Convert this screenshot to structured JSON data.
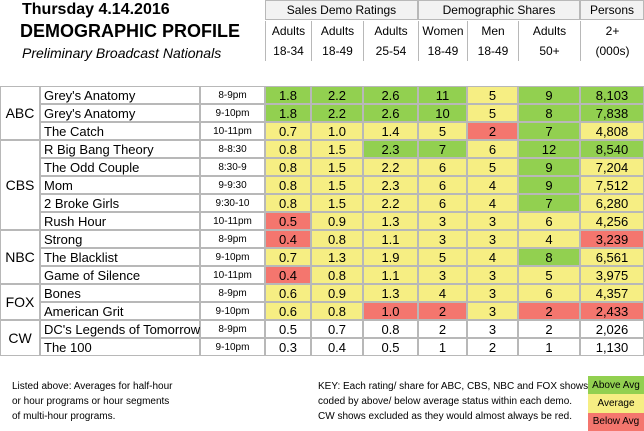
{
  "header": {
    "title": "Thursday 4.14.2016",
    "subtitle": "DEMOGRAPHIC PROFILE",
    "note": "Preliminary Broadcast Nationals"
  },
  "column_groups": [
    {
      "label": "Sales Demo Ratings",
      "columns": [
        {
          "lines": [
            "Adults",
            "18-34"
          ]
        },
        {
          "lines": [
            "Adults",
            "18-49"
          ]
        },
        {
          "lines": [
            "Adults",
            "25-54"
          ]
        }
      ]
    },
    {
      "label": "Demographic Shares",
      "columns": [
        {
          "lines": [
            "Women",
            "18-49"
          ]
        },
        {
          "lines": [
            "Men",
            "18-49"
          ]
        },
        {
          "lines": [
            "Adults",
            "50+"
          ]
        }
      ]
    },
    {
      "label": "Persons",
      "columns": [
        {
          "lines": [
            "2+",
            "(000s)"
          ]
        }
      ]
    }
  ],
  "networks": [
    {
      "name": "ABC",
      "rows": [
        {
          "show": "Grey's Anatomy",
          "time": "8-9pm",
          "values": [
            "1.8",
            "2.2",
            "2.6",
            "11",
            "5",
            "9",
            "8,103"
          ],
          "colors": [
            "#92d050",
            "#92d050",
            "#92d050",
            "#92d050",
            "#f6ee83",
            "#92d050",
            "#92d050"
          ]
        },
        {
          "show": "Grey's Anatomy",
          "time": "9-10pm",
          "values": [
            "1.8",
            "2.2",
            "2.6",
            "10",
            "5",
            "8",
            "7,838"
          ],
          "colors": [
            "#92d050",
            "#92d050",
            "#92d050",
            "#92d050",
            "#f6ee83",
            "#92d050",
            "#92d050"
          ]
        },
        {
          "show": "The Catch",
          "time": "10-11pm",
          "values": [
            "0.7",
            "1.0",
            "1.4",
            "5",
            "2",
            "7",
            "4,808"
          ],
          "colors": [
            "#f6ee83",
            "#f6ee83",
            "#f6ee83",
            "#f6ee83",
            "#f4766e",
            "#92d050",
            "#f6ee83"
          ]
        }
      ]
    },
    {
      "name": "CBS",
      "rows": [
        {
          "show": "R Big Bang Theory",
          "time": "8-8:30",
          "values": [
            "0.8",
            "1.5",
            "2.3",
            "7",
            "6",
            "12",
            "8,540"
          ],
          "colors": [
            "#f6ee83",
            "#f6ee83",
            "#92d050",
            "#92d050",
            "#f6ee83",
            "#92d050",
            "#92d050"
          ]
        },
        {
          "show": "The Odd Couple",
          "time": "8:30-9",
          "values": [
            "0.8",
            "1.5",
            "2.2",
            "6",
            "5",
            "9",
            "7,204"
          ],
          "colors": [
            "#f6ee83",
            "#f6ee83",
            "#f6ee83",
            "#f6ee83",
            "#f6ee83",
            "#92d050",
            "#f6ee83"
          ]
        },
        {
          "show": "Mom",
          "time": "9-9:30",
          "values": [
            "0.8",
            "1.5",
            "2.3",
            "6",
            "4",
            "9",
            "7,512"
          ],
          "colors": [
            "#f6ee83",
            "#f6ee83",
            "#f6ee83",
            "#f6ee83",
            "#f6ee83",
            "#92d050",
            "#f6ee83"
          ]
        },
        {
          "show": "2 Broke Girls",
          "time": "9:30-10",
          "values": [
            "0.8",
            "1.5",
            "2.2",
            "6",
            "4",
            "7",
            "6,280"
          ],
          "colors": [
            "#f6ee83",
            "#f6ee83",
            "#f6ee83",
            "#f6ee83",
            "#f6ee83",
            "#92d050",
            "#f6ee83"
          ]
        },
        {
          "show": "Rush Hour",
          "time": "10-11pm",
          "values": [
            "0.5",
            "0.9",
            "1.3",
            "3",
            "3",
            "6",
            "4,256"
          ],
          "colors": [
            "#f4766e",
            "#f6ee83",
            "#f6ee83",
            "#f6ee83",
            "#f6ee83",
            "#f6ee83",
            "#f6ee83"
          ]
        }
      ]
    },
    {
      "name": "NBC",
      "rows": [
        {
          "show": "Strong",
          "time": "8-9pm",
          "values": [
            "0.4",
            "0.8",
            "1.1",
            "3",
            "3",
            "4",
            "3,239"
          ],
          "colors": [
            "#f4766e",
            "#f6ee83",
            "#f6ee83",
            "#f6ee83",
            "#f6ee83",
            "#f6ee83",
            "#f4766e"
          ]
        },
        {
          "show": "The Blacklist",
          "time": "9-10pm",
          "values": [
            "0.7",
            "1.3",
            "1.9",
            "5",
            "4",
            "8",
            "6,561"
          ],
          "colors": [
            "#f6ee83",
            "#f6ee83",
            "#f6ee83",
            "#f6ee83",
            "#f6ee83",
            "#92d050",
            "#f6ee83"
          ]
        },
        {
          "show": "Game of Silence",
          "time": "10-11pm",
          "values": [
            "0.4",
            "0.8",
            "1.1",
            "3",
            "3",
            "5",
            "3,975"
          ],
          "colors": [
            "#f4766e",
            "#f6ee83",
            "#f6ee83",
            "#f6ee83",
            "#f6ee83",
            "#f6ee83",
            "#f6ee83"
          ]
        }
      ]
    },
    {
      "name": "FOX",
      "rows": [
        {
          "show": "Bones",
          "time": "8-9pm",
          "values": [
            "0.6",
            "0.9",
            "1.3",
            "4",
            "3",
            "6",
            "4,357"
          ],
          "colors": [
            "#f6ee83",
            "#f6ee83",
            "#f6ee83",
            "#f6ee83",
            "#f6ee83",
            "#f6ee83",
            "#f6ee83"
          ]
        },
        {
          "show": "American Grit",
          "time": "9-10pm",
          "values": [
            "0.6",
            "0.8",
            "1.0",
            "2",
            "3",
            "2",
            "2,433"
          ],
          "colors": [
            "#f6ee83",
            "#f6ee83",
            "#f4766e",
            "#f4766e",
            "#f6ee83",
            "#f4766e",
            "#f4766e"
          ]
        }
      ]
    },
    {
      "name": "CW",
      "rows": [
        {
          "show": "DC's Legends of Tomorrow",
          "time": "8-9pm",
          "values": [
            "0.5",
            "0.7",
            "0.8",
            "2",
            "3",
            "2",
            "2,026"
          ]
        },
        {
          "show": "The 100",
          "time": "9-10pm",
          "values": [
            "0.3",
            "0.4",
            "0.5",
            "1",
            "2",
            "1",
            "1,130"
          ]
        }
      ]
    }
  ],
  "footer": {
    "note": [
      "Listed above: Averages for half-hour",
      "or hour programs or hour segments",
      "of multi-hour programs."
    ],
    "key": [
      "KEY: Each rating/ share for ABC, CBS, NBC and FOX shows are color-",
      "coded by above/ below average status within each demo.",
      "CW shows excluded as they would almost always be red."
    ],
    "legend": [
      {
        "label": "Above Avg",
        "color": "#92d050"
      },
      {
        "label": "Average",
        "color": "#f6ee83"
      },
      {
        "label": "Below Avg",
        "color": "#f4766e"
      }
    ]
  }
}
